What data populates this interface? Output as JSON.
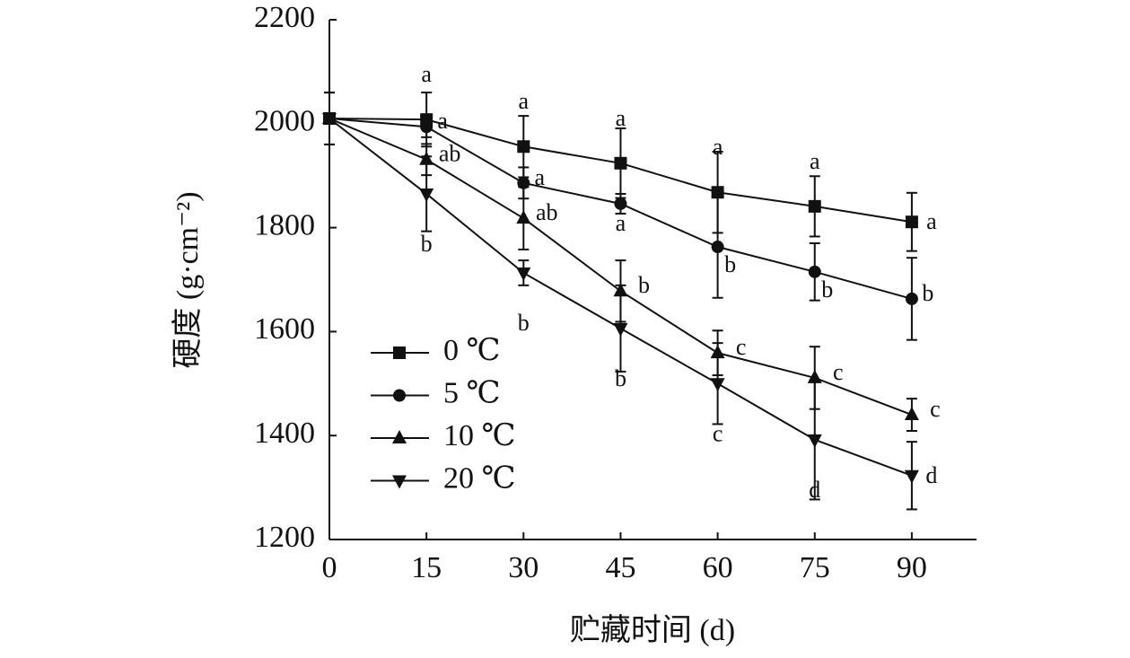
{
  "chart_data": {
    "type": "line",
    "x_label": "贮藏时间 (d)",
    "y_label": "硬度 (g·cm⁻²)",
    "x": [
      0,
      15,
      30,
      45,
      60,
      75,
      90
    ],
    "xlim": [
      0,
      100
    ],
    "xticks": [
      0,
      15,
      30,
      45,
      60,
      75,
      90
    ],
    "ylim": [
      1200,
      2200
    ],
    "yticks": [
      1200,
      1400,
      1600,
      1800,
      2000,
      2200
    ],
    "legend": "lower left",
    "series": [
      {
        "name": "0 ℃",
        "color": "#111111",
        "marker": "square",
        "values": [
          2010,
          2008,
          1956,
          1924,
          1868,
          1841,
          1811
        ],
        "errors": [
          50,
          52,
          59,
          67,
          78,
          58,
          56
        ],
        "labels": [
          null,
          "a",
          "a",
          "a",
          "a",
          "a",
          "a"
        ]
      },
      {
        "name": "5 ℃",
        "color": "#111111",
        "marker": "circle",
        "values": [
          2010,
          1994,
          1886,
          1846,
          1763,
          1715,
          1663
        ],
        "errors": [
          50,
          20,
          30,
          19,
          98,
          55,
          79
        ],
        "labels": [
          null,
          "a",
          "a",
          "a",
          "b",
          "b",
          "b"
        ]
      },
      {
        "name": "10 ℃",
        "color": "#111111",
        "marker": "triangle-up",
        "values": [
          2010,
          1931,
          1818,
          1678,
          1559,
          1511,
          1440
        ],
        "errors": [
          50,
          30,
          60,
          59,
          43,
          60,
          31
        ],
        "labels": [
          null,
          "ab",
          "ab",
          "b",
          "c",
          "c",
          "c"
        ]
      },
      {
        "name": "20 ℃",
        "color": "#111111",
        "marker": "triangle-down",
        "values": [
          2010,
          1865,
          1713,
          1606,
          1500,
          1392,
          1323
        ],
        "errors": [
          50,
          72,
          24,
          83,
          78,
          115,
          65
        ],
        "labels": [
          null,
          "b",
          "b",
          "b",
          "c",
          "d",
          "d"
        ]
      }
    ]
  }
}
